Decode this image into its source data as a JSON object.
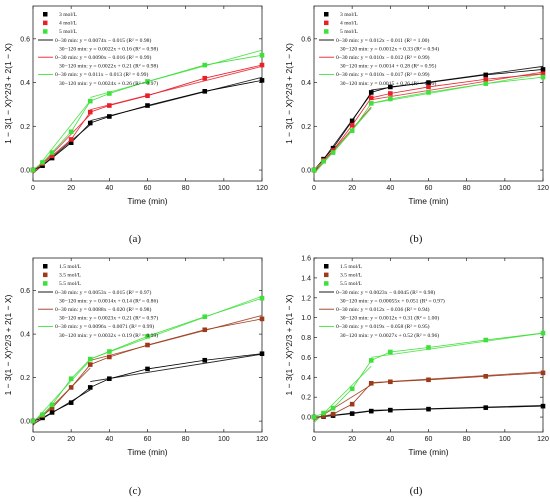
{
  "chart_data": [
    {
      "panel_label": "(a)",
      "type": "scatter",
      "xlabel": "Time (min)",
      "ylabel": "1 − 3(1 − X)^2/3 + 2(1 − X)",
      "xlim": [
        0,
        120
      ],
      "ylim": [
        -0.05,
        0.75
      ],
      "xticks": [
        0,
        20,
        40,
        60,
        80,
        100,
        120
      ],
      "yticks": [
        0.0,
        0.2,
        0.4,
        0.6
      ],
      "ytick_labels": [
        "0.0",
        "0.2",
        "0.4",
        "0.6"
      ],
      "x": [
        0,
        5,
        10,
        20,
        30,
        40,
        60,
        90,
        120
      ],
      "series": [
        {
          "name": "3 mol/L",
          "color": "#000000",
          "values": [
            0.0,
            0.02,
            0.055,
            0.125,
            0.215,
            0.245,
            0.295,
            0.36,
            0.41
          ]
        },
        {
          "name": "4 mol/L",
          "color": "#e8202a",
          "values": [
            0.0,
            0.03,
            0.065,
            0.14,
            0.265,
            0.295,
            0.34,
            0.42,
            0.48
          ]
        },
        {
          "name": "5 mol/L",
          "color": "#3ee03a",
          "values": [
            0.0,
            0.035,
            0.08,
            0.175,
            0.315,
            0.35,
            0.405,
            0.48,
            0.525
          ]
        }
      ],
      "fits": [
        {
          "color": "#000000",
          "range": [
            0,
            30
          ],
          "slope": 0.0074,
          "intercept": -0.015,
          "text": "0−30 min: y = 0.0074x − 0.015 (R² = 0.98)"
        },
        {
          "color": "#000000",
          "range": [
            30,
            120
          ],
          "slope": 0.0022,
          "intercept": 0.16,
          "text": "30−120 min: y = 0.0022x + 0.16 (R² = 0.98)"
        },
        {
          "color": "#e8202a",
          "range": [
            0,
            30
          ],
          "slope": 0.009,
          "intercept": -0.016,
          "text": "0−30 min: y = 0.0090x − 0.016 (R² = 0.99)"
        },
        {
          "color": "#e8202a",
          "range": [
            30,
            120
          ],
          "slope": 0.0022,
          "intercept": 0.21,
          "text": "30−120 min: y = 0.0022x + 0.21 (R² = 0.98)"
        },
        {
          "color": "#3ee03a",
          "range": [
            0,
            30
          ],
          "slope": 0.011,
          "intercept": -0.013,
          "text": "0−30 min: y = 0.011x − 0.013 (R² = 0.99)"
        },
        {
          "color": "#3ee03a",
          "range": [
            30,
            120
          ],
          "slope": 0.0024,
          "intercept": 0.26,
          "text": "30−120 min: y = 0.0024x + 0.26 (R² = 0.97)"
        }
      ]
    },
    {
      "panel_label": "(b)",
      "type": "scatter",
      "xlabel": "Time (min)",
      "ylabel": "1 − 3(1 − X)^2/3 + 2(1 − X)",
      "xlim": [
        0,
        120
      ],
      "ylim": [
        -0.05,
        0.75
      ],
      "xticks": [
        0,
        20,
        40,
        60,
        80,
        100,
        120
      ],
      "yticks": [
        0.0,
        0.2,
        0.4,
        0.6
      ],
      "ytick_labels": [
        "0.0",
        "0.2",
        "0.4",
        "0.6"
      ],
      "x": [
        0,
        5,
        10,
        20,
        30,
        40,
        60,
        90,
        120
      ],
      "series": [
        {
          "name": "3 mol/L",
          "color": "#000000",
          "values": [
            0.0,
            0.05,
            0.1,
            0.225,
            0.355,
            0.38,
            0.4,
            0.435,
            0.46
          ]
        },
        {
          "name": "4 mol/L",
          "color": "#e8202a",
          "values": [
            0.0,
            0.045,
            0.09,
            0.205,
            0.33,
            0.35,
            0.38,
            0.415,
            0.44
          ]
        },
        {
          "name": "5 mol/L",
          "color": "#3ee03a",
          "values": [
            0.0,
            0.04,
            0.08,
            0.18,
            0.305,
            0.325,
            0.355,
            0.395,
            0.425
          ]
        }
      ],
      "fits": [
        {
          "color": "#000000",
          "range": [
            0,
            30
          ],
          "slope": 0.012,
          "intercept": -0.011,
          "text": "0−30 min: y = 0.012x − 0.011 (R² = 1.00)"
        },
        {
          "color": "#000000",
          "range": [
            30,
            120
          ],
          "slope": 0.0012,
          "intercept": 0.33,
          "text": "30−120 min: y = 0.0012x + 0.33 (R² = 0.94)"
        },
        {
          "color": "#e8202a",
          "range": [
            0,
            30
          ],
          "slope": 0.01,
          "intercept": -0.012,
          "text": "0−30 min: y = 0.010x − 0.012 (R² = 0.99)"
        },
        {
          "color": "#e8202a",
          "range": [
            30,
            120
          ],
          "slope": 0.0014,
          "intercept": 0.28,
          "text": "30−120 min: y = 0.0014 + 0.28 (R² = 0.95)"
        },
        {
          "color": "#3ee03a",
          "range": [
            0,
            30
          ],
          "slope": 0.01,
          "intercept": -0.017,
          "text": "0−30 min: y = 0.010x − 0.017 (R² = 0.99)"
        },
        {
          "color": "#3ee03a",
          "range": [
            30,
            120
          ],
          "slope": 0.0015,
          "intercept": 0.26,
          "text": "30−120 min: y = 0.0015 + 0.26 (R² = 0.99)"
        }
      ]
    },
    {
      "panel_label": "(c)",
      "type": "scatter",
      "xlabel": "Time (min)",
      "ylabel": "1 − 3(1 − X)^2/3 + 2(1 − X)",
      "xlim": [
        0,
        120
      ],
      "ylim": [
        -0.05,
        0.75
      ],
      "xticks": [
        0,
        20,
        40,
        60,
        80,
        100,
        120
      ],
      "yticks": [
        0.0,
        0.2,
        0.4,
        0.6
      ],
      "ytick_labels": [
        "0.0",
        "0.2",
        "0.4",
        "0.6"
      ],
      "x": [
        0,
        5,
        10,
        20,
        30,
        40,
        60,
        90,
        120
      ],
      "series": [
        {
          "name": "1.5 mol/L",
          "color": "#000000",
          "values": [
            0.0,
            0.015,
            0.04,
            0.085,
            0.155,
            0.195,
            0.24,
            0.28,
            0.31
          ]
        },
        {
          "name": "3.5 mol/L",
          "color": "#9c3a1a",
          "values": [
            0.0,
            0.025,
            0.06,
            0.155,
            0.26,
            0.295,
            0.35,
            0.42,
            0.47
          ]
        },
        {
          "name": "5.5 mol/L",
          "color": "#3ee03a",
          "values": [
            0.0,
            0.03,
            0.075,
            0.195,
            0.285,
            0.32,
            0.39,
            0.48,
            0.565
          ]
        }
      ],
      "fits": [
        {
          "color": "#000000",
          "range": [
            0,
            30
          ],
          "slope": 0.0053,
          "intercept": -0.015,
          "text": "0−30 min: y = 0.0053x − 0.015 (R² = 0.97)"
        },
        {
          "color": "#000000",
          "range": [
            30,
            120
          ],
          "slope": 0.0014,
          "intercept": 0.14,
          "text": "30−120 min: y = 0.0014x + 0.14 (R² = 0.86)"
        },
        {
          "color": "#9c3a1a",
          "range": [
            0,
            30
          ],
          "slope": 0.0088,
          "intercept": -0.02,
          "text": "0−30 min: y = 0.0088x − 0.020 (R² = 0.98)"
        },
        {
          "color": "#9c3a1a",
          "range": [
            30,
            120
          ],
          "slope": 0.0023,
          "intercept": 0.21,
          "text": "30−120 min: y = 0.0023x + 0.21 (R² = 0.97)"
        },
        {
          "color": "#3ee03a",
          "range": [
            0,
            30
          ],
          "slope": 0.0096,
          "intercept": -0.0071,
          "text": "0−30 min: y = 0.0096x − 0.0071 (R² = 0.99)"
        },
        {
          "color": "#3ee03a",
          "range": [
            30,
            120
          ],
          "slope": 0.0032,
          "intercept": 0.19,
          "text": "30−120 min: y = 0.0032x + 0.19 (R² = 0.99)"
        }
      ]
    },
    {
      "panel_label": "(d)",
      "type": "scatter",
      "xlabel": "Time (min)",
      "ylabel": "1 − 3(1 − X)^2/3 + 2(1 − X)",
      "xlim": [
        0,
        120
      ],
      "ylim": [
        -0.15,
        1.6
      ],
      "xticks": [
        0,
        20,
        40,
        60,
        80,
        100,
        120
      ],
      "yticks": [
        0.0,
        0.2,
        0.4,
        0.6,
        0.8,
        1.0,
        1.2,
        1.4,
        1.6
      ],
      "ytick_labels": [
        "0.0",
        "0.2",
        "0.4",
        "0.6",
        "0.8",
        "1.0",
        "1.2",
        "1.4",
        "1.6"
      ],
      "x": [
        0,
        5,
        10,
        20,
        30,
        40,
        60,
        90,
        120
      ],
      "series": [
        {
          "name": "1.5 mol/L",
          "color": "#000000",
          "values": [
            0.0,
            0.005,
            0.015,
            0.035,
            0.06,
            0.07,
            0.08,
            0.095,
            0.11
          ]
        },
        {
          "name": "3.5 mol/L",
          "color": "#9c3a1a",
          "values": [
            0.0,
            0.01,
            0.03,
            0.13,
            0.34,
            0.355,
            0.375,
            0.41,
            0.445
          ]
        },
        {
          "name": "5.5 mol/L",
          "color": "#3ee03a",
          "values": [
            0.0,
            0.04,
            0.09,
            0.285,
            0.57,
            0.655,
            0.7,
            0.775,
            0.845
          ]
        }
      ],
      "fits": [
        {
          "color": "#000000",
          "range": [
            0,
            30
          ],
          "slope": 0.0023,
          "intercept": -0.0045,
          "text": "0−30 min: y = 0.0023x − 0.0045 (R² = 0.98)"
        },
        {
          "color": "#000000",
          "range": [
            30,
            120
          ],
          "slope": 0.00055,
          "intercept": 0.051,
          "text": "30−120 min: y = 0.00055x + 0.051 (R² = 0.97)"
        },
        {
          "color": "#9c3a1a",
          "range": [
            0,
            30
          ],
          "slope": 0.012,
          "intercept": -0.036,
          "text": "0−30 min: y = 0.012x − 0.036 (R² = 0.94)"
        },
        {
          "color": "#9c3a1a",
          "range": [
            30,
            120
          ],
          "slope": 0.0012,
          "intercept": 0.31,
          "text": "30−120 min: y = 0.0012x + 0.31 (R² = 1.00)"
        },
        {
          "color": "#3ee03a",
          "range": [
            0,
            30
          ],
          "slope": 0.019,
          "intercept": -0.058,
          "text": "0−30 min: y = 0.019x − 0.058 (R² = 0.95)"
        },
        {
          "color": "#3ee03a",
          "range": [
            30,
            120
          ],
          "slope": 0.0027,
          "intercept": 0.52,
          "text": "30−120 min: y = 0.0027x + 0.52 (R² = 0.96)"
        }
      ]
    }
  ]
}
